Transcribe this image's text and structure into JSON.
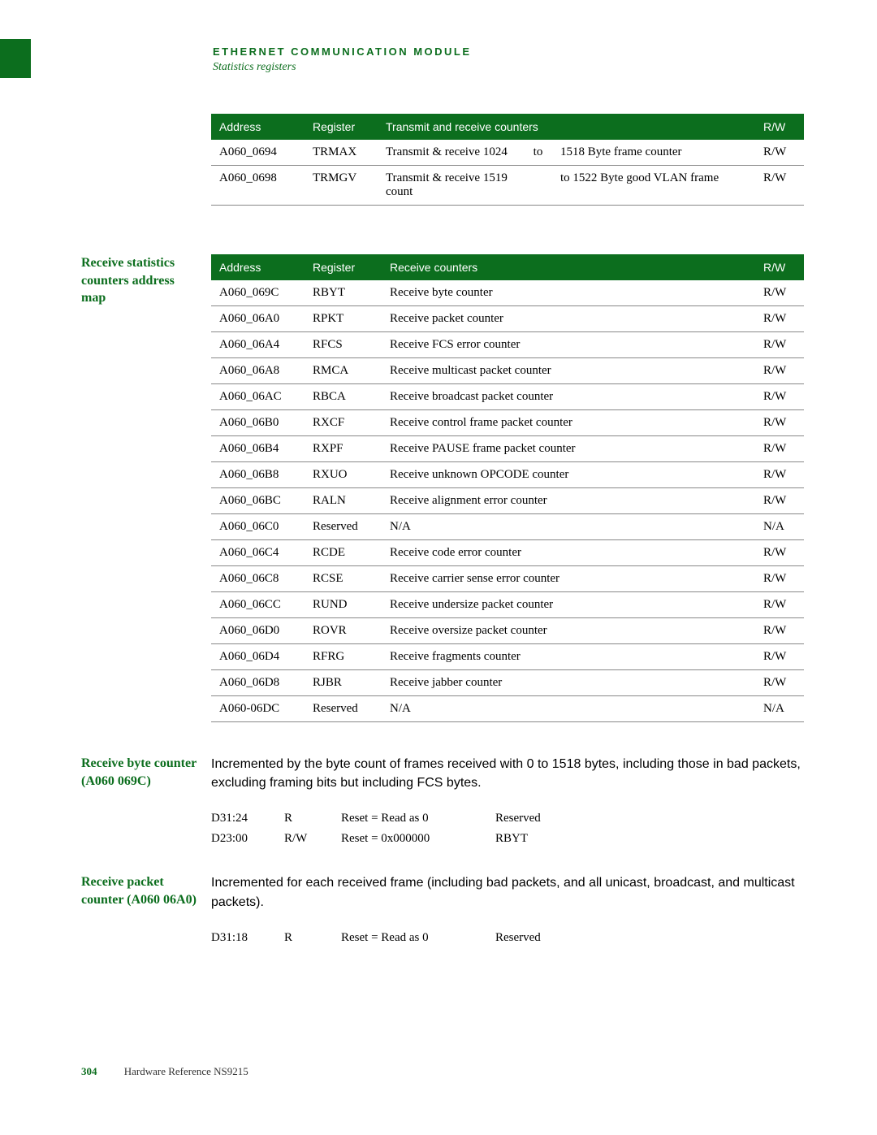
{
  "header": {
    "title": "ETHERNET COMMUNICATION MODULE",
    "subtitle": "Statistics registers"
  },
  "colors": {
    "green": "#0c6e1e",
    "border": "#888888",
    "white": "#ffffff"
  },
  "table1": {
    "headers": {
      "c0": "Address",
      "c1": "Register",
      "c2": "Transmit and receive counters",
      "c3": "R/W"
    },
    "rows": [
      {
        "addr": "A060_0694",
        "reg": "TRMAX",
        "desc_a": "Transmit & receive 1024",
        "desc_mid": "to",
        "desc_b": "1518 Byte frame counter",
        "rw": "R/W"
      },
      {
        "addr": "A060_0698",
        "reg": "TRMGV",
        "desc_a": "Transmit & receive 1519 count",
        "desc_mid": "",
        "desc_b": "to 1522 Byte good VLAN frame",
        "rw": "R/W"
      }
    ]
  },
  "section2_label": "Receive statistics counters address map",
  "table2": {
    "headers": {
      "c0": "Address",
      "c1": "Register",
      "c2": "Receive counters",
      "c3": "R/W"
    },
    "rows": [
      {
        "addr": "A060_069C",
        "reg": "RBYT",
        "desc": "Receive byte counter",
        "rw": "R/W"
      },
      {
        "addr": "A060_06A0",
        "reg": "RPKT",
        "desc": "Receive packet counter",
        "rw": "R/W"
      },
      {
        "addr": "A060_06A4",
        "reg": "RFCS",
        "desc": "Receive FCS error counter",
        "rw": "R/W"
      },
      {
        "addr": "A060_06A8",
        "reg": "RMCA",
        "desc": "Receive multicast packet counter",
        "rw": "R/W"
      },
      {
        "addr": "A060_06AC",
        "reg": "RBCA",
        "desc": "Receive broadcast packet counter",
        "rw": "R/W"
      },
      {
        "addr": "A060_06B0",
        "reg": "RXCF",
        "desc": "Receive control frame packet counter",
        "rw": "R/W"
      },
      {
        "addr": "A060_06B4",
        "reg": "RXPF",
        "desc": "Receive PAUSE frame packet counter",
        "rw": "R/W"
      },
      {
        "addr": "A060_06B8",
        "reg": "RXUO",
        "desc": "Receive unknown OPCODE counter",
        "rw": "R/W"
      },
      {
        "addr": "A060_06BC",
        "reg": "RALN",
        "desc": "Receive alignment error counter",
        "rw": "R/W"
      },
      {
        "addr": "A060_06C0",
        "reg": "Reserved",
        "desc": "N/A",
        "rw": "N/A"
      },
      {
        "addr": "A060_06C4",
        "reg": "RCDE",
        "desc": "Receive code error counter",
        "rw": "R/W"
      },
      {
        "addr": "A060_06C8",
        "reg": "RCSE",
        "desc": "Receive carrier sense error counter",
        "rw": "R/W"
      },
      {
        "addr": "A060_06CC",
        "reg": "RUND",
        "desc": "Receive undersize packet counter",
        "rw": "R/W"
      },
      {
        "addr": "A060_06D0",
        "reg": "ROVR",
        "desc": "Receive oversize packet counter",
        "rw": "R/W"
      },
      {
        "addr": "A060_06D4",
        "reg": "RFRG",
        "desc": "Receive fragments counter",
        "rw": "R/W"
      },
      {
        "addr": "A060_06D8",
        "reg": "RJBR",
        "desc": "Receive jabber counter",
        "rw": "R/W"
      },
      {
        "addr": "A060-06DC",
        "reg": "Reserved",
        "desc": "N/A",
        "rw": "N/A"
      }
    ]
  },
  "section3": {
    "label": "Receive byte counter (A060 069C)",
    "text": "Incremented by the byte count of frames received with 0 to 1518 bytes, including those in bad packets, excluding framing bits but including FCS bytes.",
    "bits": [
      {
        "f0": "D31:24",
        "f1": "R",
        "f2": "Reset = Read as 0",
        "f3": "Reserved"
      },
      {
        "f0": "D23:00",
        "f1": "R/W",
        "f2": "Reset = 0x000000",
        "f3": "RBYT"
      }
    ]
  },
  "section4": {
    "label": "Receive packet counter (A060 06A0)",
    "text": "Incremented for each received frame (including bad packets, and all unicast, broadcast, and multicast packets).",
    "bits": [
      {
        "f0": "D31:18",
        "f1": "R",
        "f2": "Reset = Read as 0",
        "f3": "Reserved"
      }
    ]
  },
  "footer": {
    "page": "304",
    "text": "Hardware Reference NS9215"
  }
}
